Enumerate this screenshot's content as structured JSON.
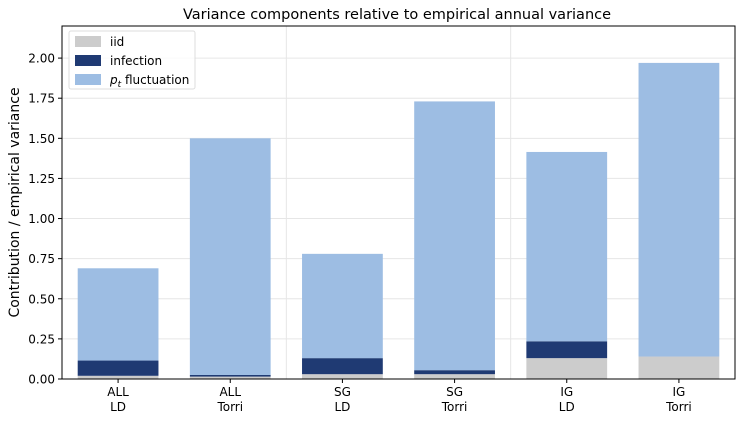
{
  "chart_data": {
    "type": "bar",
    "stacked": true,
    "title": "Variance components relative to empirical annual variance",
    "xlabel": "",
    "ylabel": "Contribution / empirical variance",
    "ylim": [
      0,
      2.2
    ],
    "yticks": [
      "0.00",
      "0.25",
      "0.50",
      "0.75",
      "1.00",
      "1.25",
      "1.50",
      "1.75",
      "2.00"
    ],
    "categories": [
      [
        "ALL",
        "LD"
      ],
      [
        "ALL",
        "Torri"
      ],
      [
        "SG",
        "LD"
      ],
      [
        "SG",
        "Torri"
      ],
      [
        "IG",
        "LD"
      ],
      [
        "IG",
        "Torri"
      ]
    ],
    "group_separators_after": [
      2,
      4
    ],
    "grid": true,
    "legend_position": "top-left",
    "series": [
      {
        "name": "iid",
        "color": "#cccccc",
        "values": [
          0.02,
          0.015,
          0.03,
          0.03,
          0.13,
          0.14
        ]
      },
      {
        "name": "infection",
        "color": "#1f3a73",
        "values": [
          0.095,
          0.01,
          0.1,
          0.025,
          0.105,
          0.0
        ]
      },
      {
        "name": "p_t fluctuation",
        "legend_main": "p",
        "legend_sub": "t",
        "legend_rest": " fluctuation",
        "color": "#9dbde3",
        "values": [
          0.575,
          1.475,
          0.65,
          1.675,
          1.18,
          1.83
        ]
      }
    ]
  }
}
